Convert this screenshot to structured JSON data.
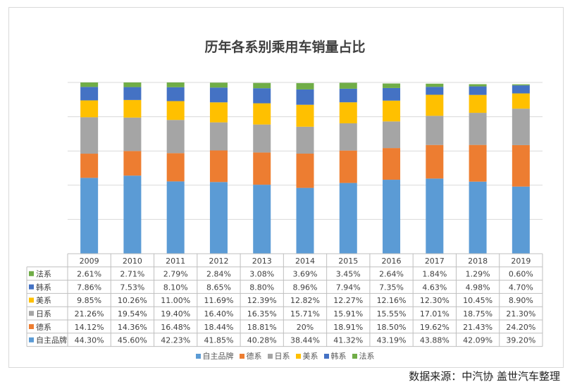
{
  "chart_data": {
    "type": "bar",
    "stacked": true,
    "title": "历年各系别乘用车销量占比",
    "categories": [
      "2009",
      "2010",
      "2011",
      "2012",
      "2013",
      "2014",
      "2015",
      "2016",
      "2017",
      "2018",
      "2019"
    ],
    "ylim": [
      0,
      100
    ],
    "unit": "%",
    "grid": true,
    "legend_placement": "bottom",
    "series": [
      {
        "name": "自主品牌",
        "color": "#5B9BD5",
        "values": [
          "44.30%",
          "45.60%",
          "42.23%",
          "41.85%",
          "40.28%",
          "38.44%",
          "41.32%",
          "43.19%",
          "43.88%",
          "42.09%",
          "39.20%"
        ]
      },
      {
        "name": "德系",
        "color": "#ED7D31",
        "values": [
          "14.12%",
          "14.36%",
          "16.48%",
          "18.44%",
          "18.81%",
          "20%",
          "18.91%",
          "18.50%",
          "19.62%",
          "21.43%",
          "24.20%"
        ]
      },
      {
        "name": "日系",
        "color": "#A5A5A5",
        "values": [
          "21.26%",
          "19.54%",
          "19.40%",
          "16.40%",
          "16.35%",
          "15.71%",
          "15.91%",
          "15.55%",
          "17.01%",
          "18.75%",
          "21.30%"
        ]
      },
      {
        "name": "美系",
        "color": "#FFC000",
        "values": [
          "9.85%",
          "10.26%",
          "11.00%",
          "11.69%",
          "12.39%",
          "12.82%",
          "12.27%",
          "12.16%",
          "12.30%",
          "10.45%",
          "8.90%"
        ]
      },
      {
        "name": "韩系",
        "color": "#4472C4",
        "values": [
          "7.86%",
          "7.53%",
          "8.10%",
          "8.65%",
          "8.80%",
          "8.96%",
          "7.94%",
          "7.35%",
          "4.63%",
          "4.98%",
          "4.70%"
        ]
      },
      {
        "name": "法系",
        "color": "#70AD47",
        "values": [
          "2.61%",
          "2.71%",
          "2.79%",
          "2.84%",
          "3.08%",
          "3.69%",
          "3.45%",
          "2.64%",
          "1.84%",
          "1.29%",
          "0.60%"
        ]
      }
    ]
  },
  "source": "数据来源：中汽协  盖世汽车整理"
}
